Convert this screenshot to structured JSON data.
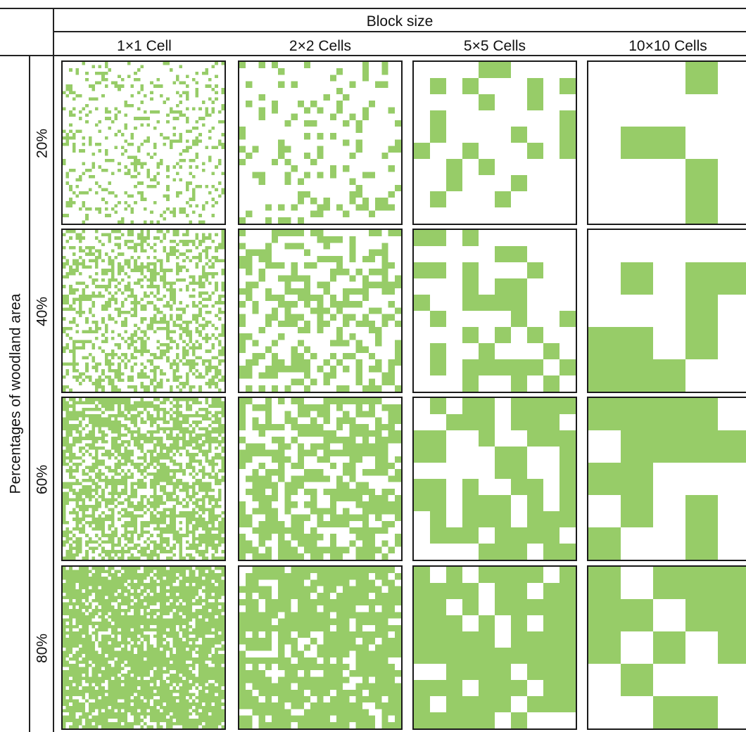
{
  "header": {
    "title": "Block size"
  },
  "columns": [
    "1×1 Cell",
    "2×2 Cells",
    "5×5 Cells",
    "10×10 Cells"
  ],
  "column_block_sizes": [
    1,
    2,
    5,
    10
  ],
  "y_axis_title": "Percentages of woodland area",
  "rows": [
    "20%",
    "40%",
    "60%",
    "80%"
  ],
  "row_fractions": [
    0.2,
    0.4,
    0.6,
    0.8
  ],
  "colors": {
    "woodland": "#97cc68",
    "background": "#ffffff",
    "border": "#1a1a1a"
  }
}
